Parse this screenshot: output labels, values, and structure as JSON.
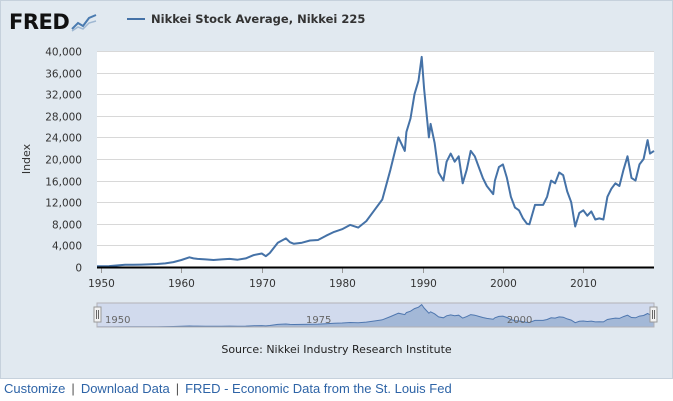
{
  "logo": {
    "text": "FRED",
    "icon": "chart-line-icon"
  },
  "legend": {
    "label": "Nikkei Stock Average, Nikkei 225",
    "color": "#4572a7"
  },
  "source": "Source: Nikkei Industry Research Institute",
  "footer": {
    "customize": "Customize",
    "download": "Download Data",
    "fred_link": "FRED - Economic Data from the St. Louis Fed",
    "separator": "|"
  },
  "chart_data": {
    "type": "line",
    "title": "Nikkei Stock Average, Nikkei 225",
    "ylabel": "Index",
    "xlabel": "",
    "xlim": [
      1949.5,
      2018.8
    ],
    "ylim": [
      0,
      40000
    ],
    "yticks": [
      0,
      4000,
      8000,
      12000,
      16000,
      20000,
      24000,
      28000,
      32000,
      36000,
      40000
    ],
    "ytick_labels": [
      "0",
      "4,000",
      "8,000",
      "12,000",
      "16,000",
      "20,000",
      "24,000",
      "28,000",
      "32,000",
      "36,000",
      "40,000"
    ],
    "xticks": [
      1950,
      1960,
      1970,
      1980,
      1990,
      2000,
      2010
    ],
    "xtick_labels": [
      "1950",
      "1960",
      "1970",
      "1980",
      "1990",
      "2000",
      "2010"
    ],
    "navigator_labels": [
      "1950",
      "1975",
      "2000"
    ],
    "grid": true,
    "series": [
      {
        "name": "Nikkei Stock Average, Nikkei 225",
        "color": "#4572a7",
        "x": [
          1949.5,
          1951,
          1953,
          1954,
          1955,
          1957,
          1958,
          1959,
          1960,
          1961,
          1961.5,
          1962,
          1963,
          1964,
          1965,
          1966,
          1967,
          1968,
          1969,
          1970,
          1970.5,
          1971,
          1972,
          1973,
          1973.5,
          1974,
          1975,
          1976,
          1977,
          1978,
          1979,
          1980,
          1981,
          1982,
          1983,
          1984,
          1985,
          1986,
          1987,
          1987.8,
          1988,
          1988.5,
          1989,
          1989.5,
          1989.9,
          1990.2,
          1990.5,
          1990.8,
          1991,
          1991.5,
          1992,
          1992.6,
          1993,
          1993.5,
          1994,
          1994.5,
          1995,
          1995.5,
          1996,
          1996.5,
          1997,
          1997.5,
          1998,
          1998.8,
          1999,
          1999.5,
          2000,
          2000.5,
          2001,
          2001.5,
          2002,
          2002.5,
          2003,
          2003.3,
          2004,
          2005,
          2005.5,
          2006,
          2006.5,
          2007,
          2007.5,
          2008,
          2008.5,
          2009,
          2009.5,
          2010,
          2010.5,
          2011,
          2011.5,
          2012,
          2012.5,
          2013,
          2013.5,
          2014,
          2014.5,
          2015,
          2015.5,
          2016,
          2016.5,
          2017,
          2017.5,
          2018,
          2018.3,
          2018.8
        ],
        "y": [
          130,
          160,
          420,
          400,
          450,
          550,
          660,
          900,
          1300,
          1800,
          1600,
          1500,
          1400,
          1300,
          1400,
          1500,
          1350,
          1600,
          2200,
          2500,
          2000,
          2600,
          4500,
          5300,
          4600,
          4300,
          4500,
          4900,
          5000,
          5800,
          6500,
          7000,
          7800,
          7300,
          8500,
          10500,
          12500,
          18000,
          24000,
          21500,
          25000,
          27500,
          32000,
          34500,
          38900,
          33000,
          28500,
          24000,
          26500,
          23000,
          17500,
          16000,
          19500,
          21000,
          19500,
          20500,
          15500,
          18000,
          21500,
          20500,
          18500,
          16500,
          15000,
          13500,
          16000,
          18500,
          19000,
          16500,
          13000,
          11000,
          10500,
          9000,
          8000,
          7900,
          11500,
          11500,
          13000,
          16000,
          15500,
          17500,
          17000,
          14000,
          12000,
          7500,
          10000,
          10500,
          9500,
          10300,
          8800,
          9000,
          8800,
          13000,
          14500,
          15500,
          15000,
          18000,
          20500,
          16500,
          16000,
          19000,
          20000,
          23500,
          21000,
          21500
        ]
      }
    ]
  }
}
